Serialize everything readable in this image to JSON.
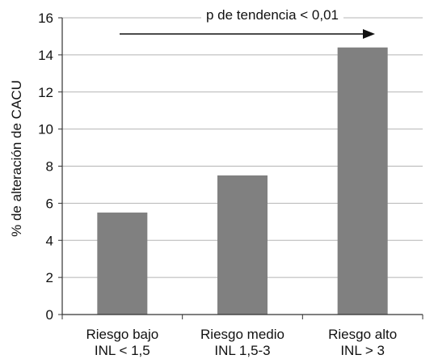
{
  "chart_data": {
    "type": "bar",
    "title": "",
    "ylabel": "% de alteración de CACU",
    "xlabel": "",
    "ylim": [
      0,
      16
    ],
    "yticks": [
      0,
      2,
      4,
      6,
      8,
      10,
      12,
      14,
      16
    ],
    "grid": true,
    "categories": [
      {
        "line1": "Riesgo bajo",
        "line2": "INL < 1,5"
      },
      {
        "line1": "Riesgo medio",
        "line2": "INL 1,5-3"
      },
      {
        "line1": "Riesgo alto",
        "line2": "INL > 3"
      }
    ],
    "values": [
      5.5,
      7.5,
      14.4
    ],
    "bar_color": "#808080",
    "annotation": {
      "text": "p de tendencia < 0,01",
      "arrow": "left-to-right"
    }
  }
}
